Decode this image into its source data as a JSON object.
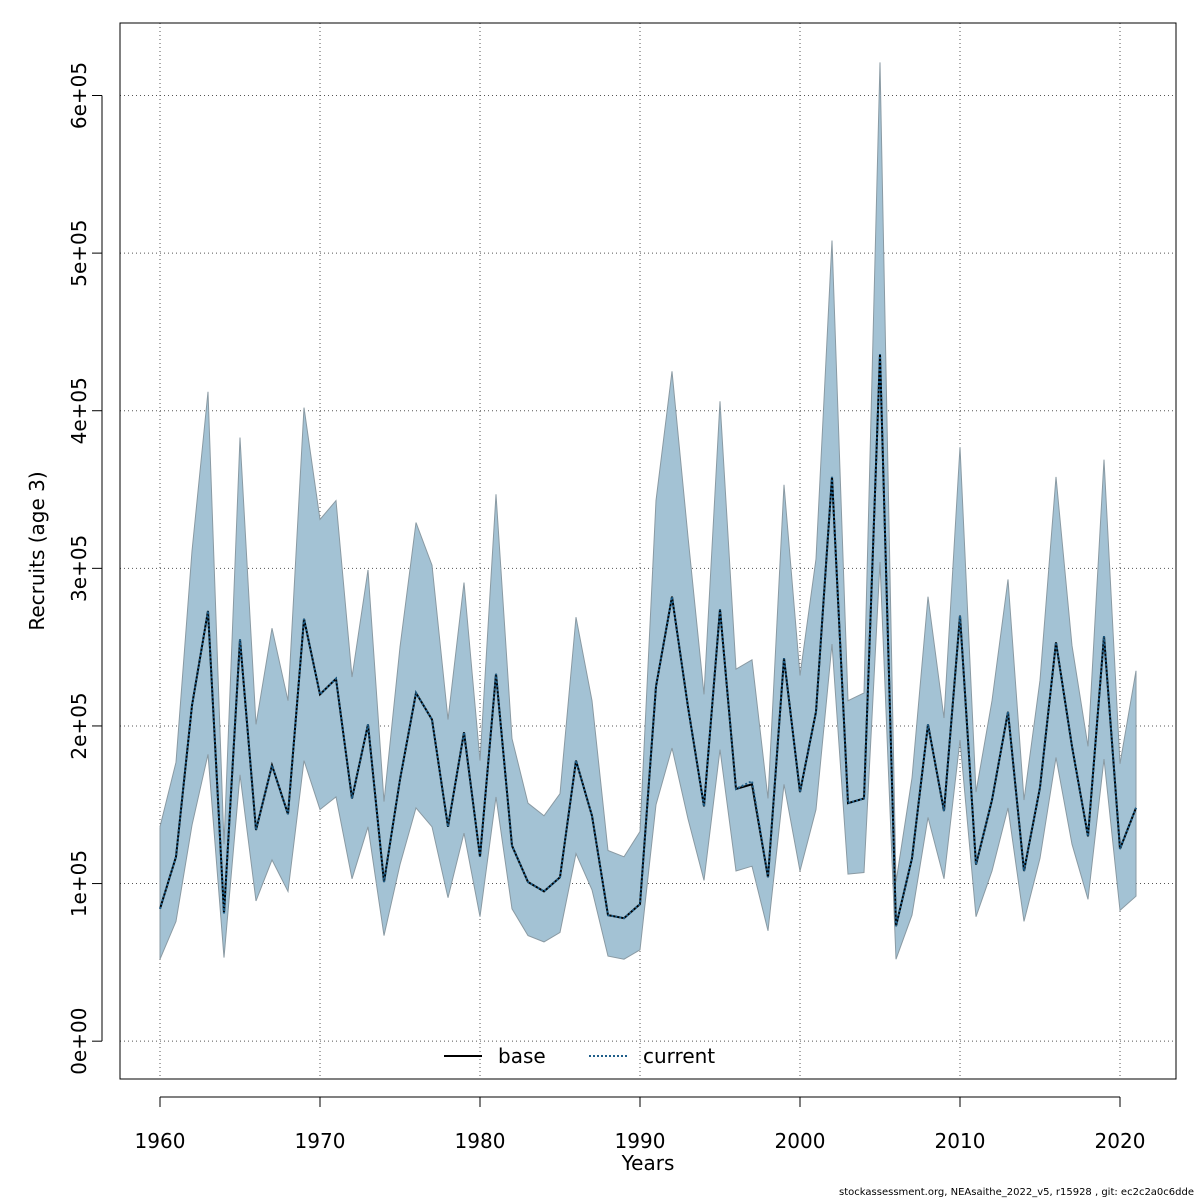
{
  "chart_data": {
    "type": "line",
    "xlabel": "Years",
    "ylabel": "Recruits (age 3)",
    "xlim": [
      1957.5,
      2023.5
    ],
    "ylim": [
      -24000,
      646000
    ],
    "x_ticks": [
      1960,
      1970,
      1980,
      1990,
      2000,
      2010,
      2020
    ],
    "y_ticks": [
      0,
      100000,
      200000,
      300000,
      400000,
      500000,
      600000
    ],
    "y_tick_labels": [
      "0e+00",
      "1e+05",
      "2e+05",
      "3e+05",
      "4e+05",
      "5e+05",
      "6e+05"
    ],
    "grid": true,
    "legend_position": "bottom-center",
    "colors": {
      "band_fill": "#a3c2d4",
      "band_edge": "#8a9aa3",
      "base_line": "#000000",
      "current_line": "#1f5f8a",
      "grid": "#555555"
    },
    "x": [
      1960,
      1961,
      1962,
      1963,
      1964,
      1965,
      1966,
      1967,
      1968,
      1969,
      1970,
      1971,
      1972,
      1973,
      1974,
      1975,
      1976,
      1977,
      1978,
      1979,
      1980,
      1981,
      1982,
      1983,
      1984,
      1985,
      1986,
      1987,
      1988,
      1989,
      1990,
      1991,
      1992,
      1993,
      1994,
      1995,
      1996,
      1997,
      1998,
      1999,
      2000,
      2001,
      2002,
      2003,
      2004,
      2005,
      2006,
      2007,
      2008,
      2009,
      2010,
      2011,
      2012,
      2013,
      2014,
      2015,
      2016,
      2017,
      2018,
      2019,
      2020,
      2021
    ],
    "series": [
      {
        "name": "base",
        "style": "solid",
        "values": [
          84000,
          117000,
          213000,
          273000,
          81000,
          255000,
          134000,
          175000,
          144000,
          268000,
          220000,
          230000,
          154000,
          201000,
          101000,
          166000,
          221000,
          204000,
          136000,
          196000,
          117000,
          233000,
          124000,
          101000,
          95000,
          104000,
          178000,
          143000,
          80000,
          78000,
          87000,
          225000,
          282000,
          212000,
          149000,
          274000,
          160000,
          163000,
          104000,
          243000,
          158000,
          209000,
          358000,
          151000,
          154000,
          436000,
          73000,
          116000,
          201000,
          146000,
          270000,
          112000,
          153000,
          209000,
          108000,
          161000,
          253000,
          187000,
          130000,
          257000,
          122000,
          148000
        ],
        "lower": [
          52000,
          76000,
          137000,
          182000,
          53000,
          169000,
          89000,
          115000,
          95000,
          178000,
          147000,
          155000,
          103000,
          136000,
          67000,
          112000,
          148000,
          136000,
          91000,
          132000,
          79000,
          155000,
          84000,
          67000,
          63000,
          69000,
          119000,
          96000,
          54000,
          52000,
          58000,
          150000,
          186000,
          141000,
          102000,
          185000,
          108000,
          111000,
          70000,
          163000,
          108000,
          147000,
          252000,
          106000,
          107000,
          304000,
          52000,
          80000,
          142000,
          103000,
          191000,
          79000,
          108000,
          148000,
          76000,
          116000,
          180000,
          125000,
          90000,
          179000,
          83000,
          92000
        ],
        "upper": [
          136000,
          177000,
          311000,
          412000,
          125000,
          383000,
          201000,
          262000,
          216000,
          402000,
          331000,
          343000,
          231000,
          299000,
          152000,
          250000,
          329000,
          302000,
          204000,
          291000,
          178000,
          347000,
          192000,
          151000,
          143000,
          157000,
          269000,
          216000,
          121000,
          117000,
          133000,
          343000,
          425000,
          320000,
          220000,
          406000,
          236000,
          242000,
          154000,
          353000,
          232000,
          306000,
          508000,
          216000,
          221000,
          621000,
          101000,
          167000,
          282000,
          205000,
          377000,
          158000,
          216000,
          293000,
          153000,
          229000,
          358000,
          251000,
          187000,
          369000,
          176000,
          235000
        ]
      },
      {
        "name": "current",
        "style": "dotted",
        "values": [
          84000,
          117000,
          213000,
          273000,
          81000,
          255000,
          134000,
          175000,
          144000,
          268000,
          220000,
          230000,
          154000,
          201000,
          101000,
          166000,
          221000,
          204000,
          136000,
          196000,
          117000,
          233000,
          124000,
          101000,
          95000,
          104000,
          178000,
          143000,
          80000,
          78000,
          87000,
          225000,
          282000,
          212000,
          149000,
          274000,
          160000,
          165000,
          104000,
          243000,
          158000,
          209000,
          358000,
          151000,
          154000,
          436000,
          73000,
          116000,
          201000,
          146000,
          270000,
          112000,
          153000,
          209000,
          108000,
          161000,
          253000,
          187000,
          130000,
          257000,
          122000,
          148000
        ]
      }
    ]
  },
  "footer": "stockassessment.org, NEAsaithe_2022_v5, r15928 , git: ec2c2a0c6dde"
}
